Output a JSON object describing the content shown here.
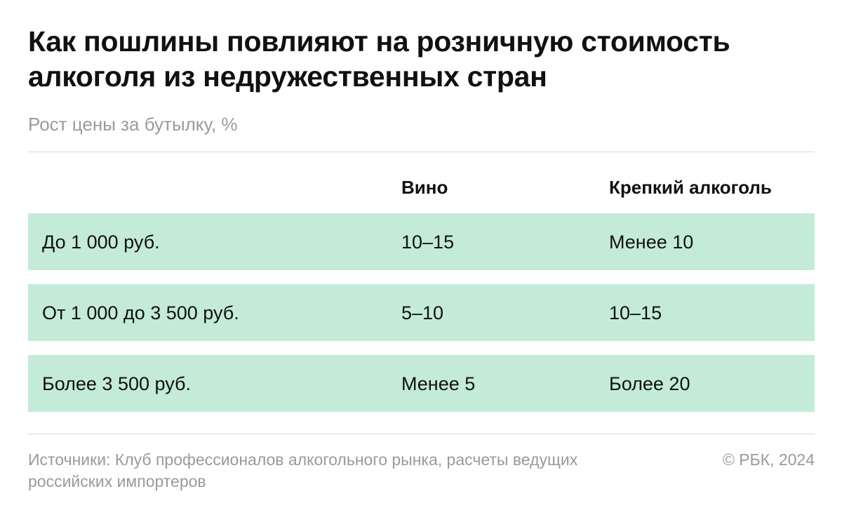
{
  "chart_data": {
    "type": "table",
    "title": "Как пошлины повлияют на розничную стоимость алкоголя из недружественных стран",
    "subtitle": "Рост цены за бутылку, %",
    "columns": [
      "",
      "Вино",
      "Крепкий алкоголь"
    ],
    "rows": [
      {
        "label": "До 1 000 руб.",
        "cells": [
          "10–15",
          "Менее 10"
        ]
      },
      {
        "label": "От 1 000 до 3 500 руб.",
        "cells": [
          "5–10",
          "10–15"
        ]
      },
      {
        "label": "Более 3 500 руб.",
        "cells": [
          "Менее 5",
          "Более 20"
        ]
      }
    ],
    "row_color": "#c3ebd8"
  },
  "footer": {
    "source": "Источники: Клуб профессионалов алкогольного рынка, расчеты ведущих российских импортеров",
    "credit": "© РБК, 2024"
  }
}
